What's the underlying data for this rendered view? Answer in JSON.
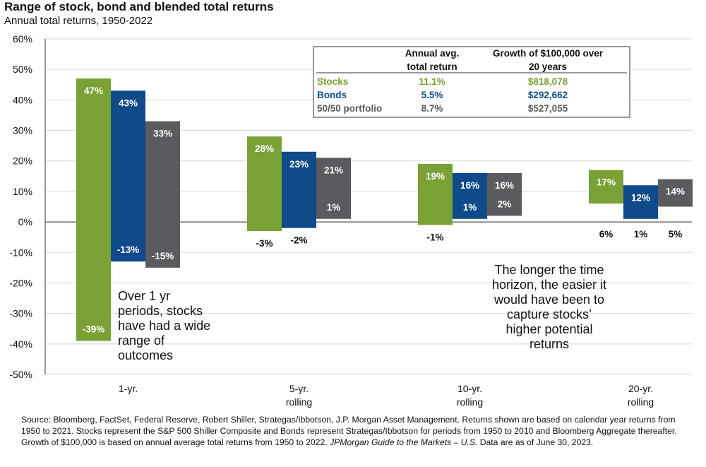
{
  "title": "Range of stock, bond and blended total returns",
  "subtitle": "Annual total returns, 1950-2022",
  "chart_data": {
    "type": "bar",
    "subtype": "floating-range",
    "categories": [
      [
        "1-yr."
      ],
      [
        "5-yr.",
        "rolling"
      ],
      [
        "10-yr.",
        "rolling"
      ],
      [
        "20-yr.",
        "rolling"
      ]
    ],
    "series": [
      {
        "name": "Stocks",
        "color": "#7aa135",
        "max": [
          47,
          28,
          19,
          17
        ],
        "min": [
          -39,
          -3,
          -1,
          6
        ]
      },
      {
        "name": "Bonds",
        "color": "#0f4a8a",
        "max": [
          43,
          23,
          16,
          12
        ],
        "min": [
          -13,
          -2,
          1,
          1
        ]
      },
      {
        "name": "50/50 portfolio",
        "color": "#595b5e",
        "max": [
          33,
          21,
          16,
          14
        ],
        "min": [
          -15,
          1,
          2,
          5
        ]
      }
    ],
    "max_labels": [
      [
        "47%",
        "43%",
        "33%"
      ],
      [
        "28%",
        "23%",
        "21%"
      ],
      [
        "19%",
        "16%",
        "16%"
      ],
      [
        "17%",
        "12%",
        "14%"
      ]
    ],
    "min_labels": [
      [
        "-39%",
        "-13%",
        "-15%"
      ],
      [
        "-3%",
        "-2%",
        "1%"
      ],
      [
        "-1%",
        "1%",
        "2%"
      ],
      [
        "6%",
        "1%",
        "5%"
      ]
    ],
    "ylim": [
      -50,
      60
    ],
    "yticks": [
      "-50%",
      "-40%",
      "-30%",
      "-20%",
      "-10%",
      "0%",
      "10%",
      "20%",
      "30%",
      "40%",
      "50%",
      "60%"
    ],
    "grid": true,
    "annotations": [
      [
        "Over 1 yr",
        "periods, stocks",
        "have had a wide",
        "range of",
        "outcomes"
      ],
      [
        "The longer the time",
        "horizon, the easier it",
        "would have been to",
        "capture stocks’",
        "higher potential",
        "returns"
      ]
    ],
    "table": {
      "headers": [
        [
          "Annual avg.",
          "total return"
        ],
        [
          "Growth of $100,000 over",
          "20 years"
        ]
      ],
      "rows": [
        {
          "label": "Stocks",
          "avg": "11.1%",
          "growth": "$818,078",
          "color": "#7aa135"
        },
        {
          "label": "Bonds",
          "avg": "5.5%",
          "growth": "$292,662",
          "color": "#0f4a8a"
        },
        {
          "label": "50/50 portfolio",
          "avg": "8.7%",
          "growth": "$527,055",
          "color": "#595b5e"
        }
      ]
    }
  },
  "source_text": "Source: Bloomberg, FactSet, Federal Reserve, Robert Shiller, Strategas/Ibbotson, J.P. Morgan Asset Management. Returns shown are based on calendar year returns from 1950 to 2021. Stocks represent the S&P 500 Shiller Composite and Bonds represent Strategas/Ibbotson for periods from 1950 to 2010 and Bloomberg Aggregate thereafter. Growth of $100,000 is based on annual average total returns from 1950 to 2022.",
  "source_italic": "JPMorgan Guide to the Markets – U.S.",
  "source_end": "Data are as of June 30, 2023."
}
